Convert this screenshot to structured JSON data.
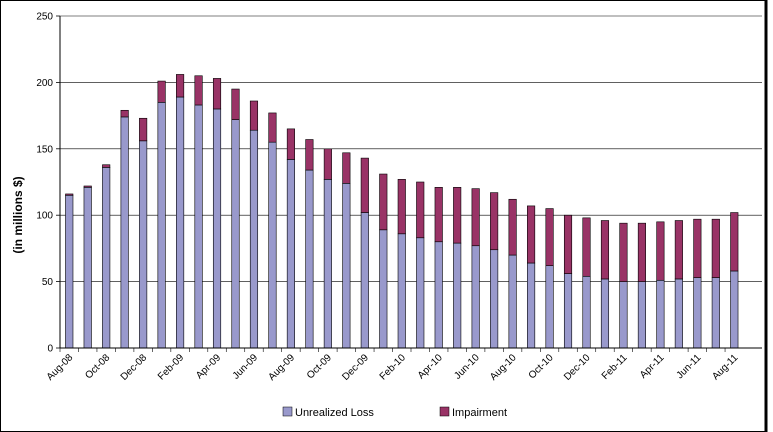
{
  "chart_data": {
    "type": "bar",
    "stacked": true,
    "title": "",
    "xlabel": "",
    "ylabel": "(in millions $)",
    "ylim": [
      0,
      250
    ],
    "yticks": [
      0,
      50,
      100,
      150,
      200,
      250
    ],
    "grid": true,
    "legend_position": "bottom",
    "categories": [
      "Aug-08",
      "Sep-08",
      "Oct-08",
      "Nov-08",
      "Dec-08",
      "Jan-09",
      "Feb-09",
      "Mar-09",
      "Apr-09",
      "May-09",
      "Jun-09",
      "Jul-09",
      "Aug-09",
      "Sep-09",
      "Oct-09",
      "Nov-09",
      "Dec-09",
      "Jan-10",
      "Feb-10",
      "Mar-10",
      "Apr-10",
      "May-10",
      "Jun-10",
      "Jul-10",
      "Aug-10",
      "Sep-10",
      "Oct-10",
      "Nov-10",
      "Dec-10",
      "Jan-11",
      "Feb-11",
      "Mar-11",
      "Apr-11",
      "May-11",
      "Jun-11",
      "Jul-11",
      "Aug-11",
      "Sep-11"
    ],
    "tick_labels": [
      "Aug-08",
      "Oct-08",
      "Dec-08",
      "Feb-09",
      "Apr-09",
      "Jun-09",
      "Aug-09",
      "Oct-09",
      "Dec-09",
      "Feb-10",
      "Apr-10",
      "Jun-10",
      "Aug-10",
      "Oct-10",
      "Dec-10",
      "Feb-11",
      "Apr-11",
      "Jun-11",
      "Aug-11"
    ],
    "series": [
      {
        "name": "Unrealized Loss",
        "color": "#9999cc",
        "values": [
          115,
          121,
          136,
          174,
          156,
          185,
          189,
          183,
          180,
          172,
          164,
          155,
          142,
          134,
          127,
          124,
          102,
          89,
          86,
          83,
          80,
          79,
          77,
          74,
          70,
          64,
          62,
          56,
          54,
          52,
          50,
          50,
          51,
          52,
          53,
          53,
          58,
          0
        ]
      },
      {
        "name": "Impairment",
        "color": "#993366",
        "values": [
          1,
          1,
          2,
          5,
          17,
          16,
          17,
          22,
          23,
          23,
          22,
          22,
          23,
          23,
          23,
          23,
          41,
          42,
          41,
          42,
          41,
          42,
          43,
          43,
          42,
          43,
          43,
          44,
          44,
          44,
          44,
          44,
          44,
          44,
          44,
          44,
          44,
          0
        ]
      }
    ]
  }
}
